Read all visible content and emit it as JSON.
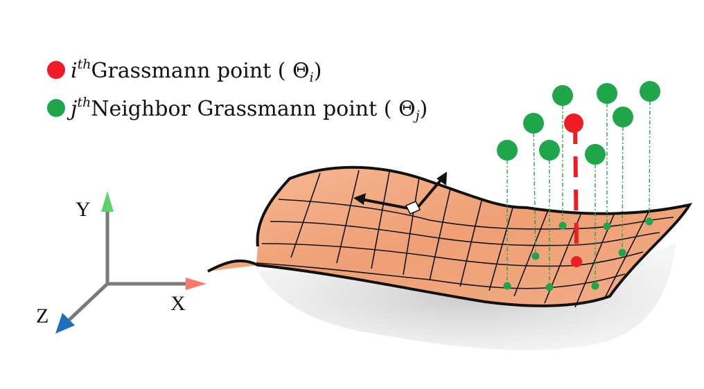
{
  "legend": {
    "items": [
      {
        "color": "#ee1c24",
        "index_symbol": "i",
        "superscript": "th",
        "label": "Grassmann point (",
        "theta": "Θ",
        "subscript": "i",
        "close": ")"
      },
      {
        "color": "#1fa64a",
        "index_symbol": "j",
        "superscript": "th",
        "label": "Neighbor Grassmann point (",
        "theta": "Θ",
        "subscript": "j",
        "close": ")"
      }
    ]
  },
  "axes": {
    "x_label": "X",
    "y_label": "Y",
    "z_label": "Z",
    "x_color": "#f47a6c",
    "y_color": "#5ed16a",
    "z_color": "#1f6fc0"
  },
  "colors": {
    "manifold_fill": "#f2a77c",
    "manifold_edge": "#111111",
    "shadow": "#d4d4d4",
    "target_point": "#ee1c24",
    "neighbor_point": "#1fa64a"
  }
}
